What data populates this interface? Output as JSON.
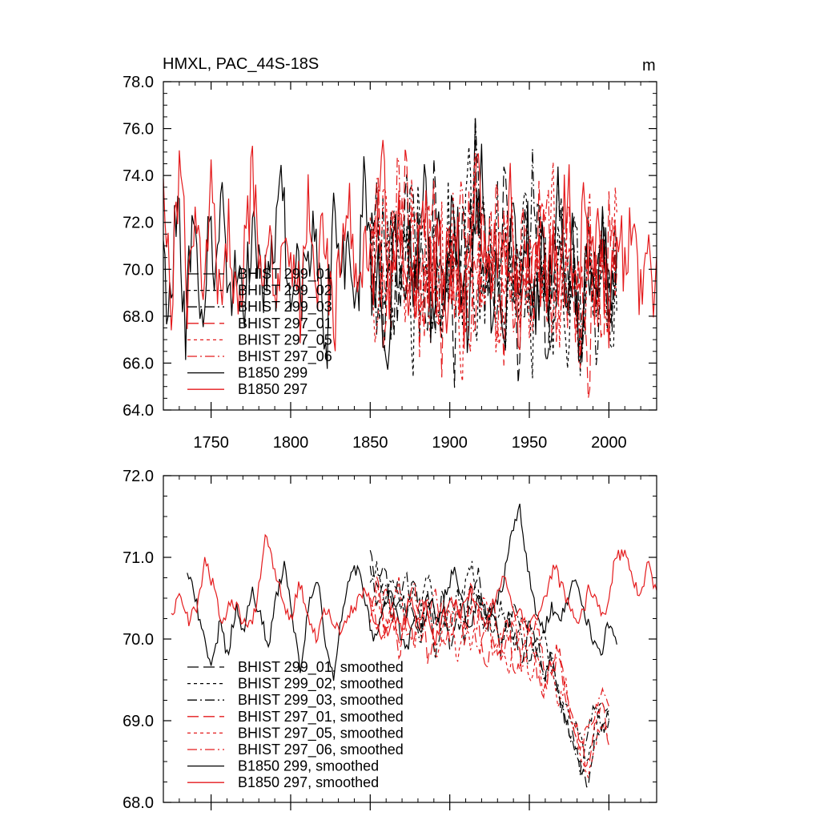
{
  "chart_data": [
    {
      "type": "line",
      "title": "HMXL, PAC_44S-18S",
      "units": "m",
      "xlim": [
        1720,
        2030
      ],
      "ylim": [
        64.0,
        78.0
      ],
      "xticks": [
        1750,
        1800,
        1850,
        1900,
        1950,
        2000
      ],
      "yticks": [
        "64.0",
        "66.0",
        "68.0",
        "70.0",
        "72.0",
        "74.0",
        "76.0",
        "78.0"
      ],
      "grid": false,
      "legend_position": "lower-left",
      "series": [
        {
          "name": "BHIST 299_01",
          "color": "#000000",
          "dash": "long-dash",
          "x_range": [
            1850,
            2005
          ],
          "mean": 70.0,
          "amp": 2.4,
          "y": [
            70.1,
            72.6,
            68.2,
            71.9,
            66.9,
            73.0,
            69.4,
            71.2,
            67.8,
            74.0,
            68.9,
            70.6,
            66.4,
            72.8,
            69.9,
            75.1,
            67.5,
            71.1,
            68.6,
            73.4,
            70.4,
            66.7,
            72.1,
            69.1,
            71.8,
            67.1,
            70.9,
            73.9,
            68.4,
            70.3,
            66.1,
            71.6,
            69.6,
            72.4,
            67.6,
            70.8
          ]
        },
        {
          "name": "BHIST 299_02",
          "color": "#000000",
          "dash": "short-dash",
          "x_range": [
            1850,
            2005
          ],
          "mean": 69.9,
          "amp": 2.3,
          "y": [
            69.6,
            71.4,
            67.9,
            72.9,
            68.8,
            70.7,
            66.2,
            73.6,
            69.3,
            71.0,
            67.4,
            72.2,
            70.5,
            68.1,
            74.6,
            66.8,
            71.7,
            69.0,
            72.7,
            67.3,
            70.2,
            68.7,
            73.1,
            66.5,
            71.3,
            69.8,
            68.0,
            72.5,
            67.0,
            70.6,
            65.9,
            71.9,
            68.5,
            70.0,
            66.3,
            69.4
          ]
        },
        {
          "name": "BHIST 299_03",
          "color": "#000000",
          "dash": "dash-dot",
          "x_range": [
            1850,
            2005
          ],
          "mean": 69.9,
          "amp": 2.3,
          "y": [
            70.6,
            68.3,
            72.3,
            67.2,
            71.5,
            69.7,
            73.8,
            68.0,
            70.9,
            66.6,
            72.0,
            69.2,
            71.4,
            67.7,
            70.3,
            75.4,
            68.9,
            71.2,
            66.9,
            72.6,
            69.5,
            70.8,
            67.4,
            73.5,
            68.6,
            70.1,
            66.0,
            71.8,
            69.0,
            72.2,
            67.5,
            70.4,
            65.6,
            71.0,
            68.2,
            69.7
          ]
        },
        {
          "name": "BHIST 297_01",
          "color": "#e41a1c",
          "dash": "long-dash",
          "x_range": [
            1850,
            2005
          ],
          "mean": 70.0,
          "amp": 2.4,
          "y": [
            68.4,
            73.2,
            66.1,
            71.8,
            69.6,
            74.7,
            67.8,
            70.9,
            68.2,
            72.5,
            66.5,
            71.2,
            70.3,
            68.6,
            73.0,
            67.1,
            71.6,
            69.4,
            72.9,
            66.8,
            70.5,
            68.9,
            71.9,
            67.3,
            73.3,
            69.1,
            70.7,
            66.2,
            72.1,
            68.0,
            71.0,
            65.2,
            70.2,
            67.6,
            72.8,
            69.5
          ]
        },
        {
          "name": "BHIST 297_05",
          "color": "#e41a1c",
          "dash": "short-dash",
          "x_range": [
            1850,
            2005
          ],
          "mean": 70.0,
          "amp": 2.3,
          "y": [
            71.2,
            67.3,
            74.3,
            69.0,
            72.0,
            66.9,
            73.4,
            68.5,
            70.6,
            67.2,
            71.7,
            69.3,
            72.6,
            66.4,
            70.0,
            73.7,
            68.1,
            71.4,
            67.0,
            70.8,
            72.3,
            68.8,
            69.9,
            66.6,
            71.5,
            68.3,
            73.6,
            67.7,
            70.4,
            69.1,
            66.0,
            71.3,
            68.7,
            70.1,
            66.7,
            73.1
          ]
        },
        {
          "name": "BHIST 297_06",
          "color": "#e41a1c",
          "dash": "dash-dot",
          "x_range": [
            1850,
            2005
          ],
          "mean": 70.0,
          "amp": 2.3,
          "y": [
            69.3,
            72.8,
            67.6,
            70.5,
            73.9,
            68.2,
            71.3,
            66.7,
            72.4,
            69.7,
            67.9,
            71.8,
            69.0,
            73.1,
            67.0,
            70.7,
            68.4,
            72.2,
            66.3,
            71.5,
            69.8,
            67.4,
            72.7,
            68.7,
            70.3,
            74.2,
            67.2,
            71.1,
            68.9,
            70.0,
            66.6,
            72.3,
            68.1,
            70.8,
            67.5,
            71.6
          ]
        },
        {
          "name": "B1850 299",
          "color": "#000000",
          "dash": "solid",
          "x_range": [
            1720,
            2005
          ],
          "mean": 70.0,
          "amp": 2.2,
          "y": [
            70.0,
            68.4,
            73.6,
            67.1,
            72.2,
            66.8,
            71.8,
            69.3,
            73.8,
            68.1,
            71.0,
            67.6,
            72.9,
            69.8,
            68.5,
            71.5,
            73.3,
            67.9,
            70.7,
            68.8,
            72.4,
            70.1,
            66.9,
            73.1,
            69.5,
            71.2,
            67.4,
            74.2,
            69.2,
            70.4,
            64.8,
            72.6,
            68.3,
            71.7,
            69.0,
            75.0,
            67.2,
            70.9,
            68.6,
            72.8,
            70.2,
            67.8,
            71.4,
            74.4,
            68.0,
            70.5,
            66.9,
            72.1,
            69.7,
            71.9,
            67.5,
            70.6,
            68.9,
            73.0,
            69.1,
            71.3,
            66.5,
            70.8,
            67.7,
            72.0,
            68.2,
            70.3
          ]
        },
        {
          "name": "B1850 297",
          "color": "#e41a1c",
          "dash": "solid",
          "x_range": [
            1720,
            2030
          ],
          "mean": 70.3,
          "amp": 2.2,
          "y": [
            72.5,
            69.0,
            74.9,
            68.6,
            71.6,
            70.1,
            73.5,
            67.9,
            72.3,
            68.8,
            70.7,
            73.8,
            69.2,
            71.4,
            67.6,
            72.8,
            70.4,
            68.3,
            73.3,
            69.6,
            71.9,
            66.9,
            70.9,
            72.6,
            68.5,
            71.1,
            69.9,
            76.2,
            68.1,
            72.2,
            70.5,
            67.7,
            73.7,
            69.4,
            71.3,
            68.7,
            72.9,
            67.3,
            70.6,
            74.0,
            68.9,
            71.8,
            69.1,
            73.4,
            67.5,
            70.2,
            72.1,
            68.4,
            71.0,
            69.8,
            74.2,
            68.0,
            72.4,
            69.5,
            71.5,
            67.8,
            72.0,
            70.3,
            71.8,
            69.3,
            70.7,
            68.9
          ]
        }
      ]
    },
    {
      "type": "line",
      "title": "",
      "xlim": [
        1720,
        2030
      ],
      "ylim": [
        68.0,
        72.0
      ],
      "yticks": [
        "68.0",
        "69.0",
        "70.0",
        "71.0",
        "72.0"
      ],
      "grid": false,
      "legend_position": "lower-left",
      "series": [
        {
          "name": "BHIST 299_01, smoothed",
          "color": "#000000",
          "dash": "long-dash",
          "x_range": [
            1850,
            2000
          ],
          "y": [
            71.1,
            70.6,
            70.9,
            70.4,
            70.7,
            70.3,
            70.8,
            70.2,
            70.5,
            70.1,
            70.6,
            69.9,
            70.3,
            70.0,
            70.5,
            70.8,
            70.2,
            70.4,
            69.8,
            70.3,
            70.0,
            69.7,
            70.2,
            69.9,
            69.5,
            69.8,
            69.3,
            69.0,
            68.8,
            68.5,
            68.2,
            68.7,
            68.9,
            69.1
          ]
        },
        {
          "name": "BHIST 299_02, smoothed",
          "color": "#000000",
          "dash": "short-dash",
          "x_range": [
            1850,
            2000
          ],
          "y": [
            70.7,
            70.9,
            70.4,
            70.8,
            70.5,
            70.2,
            70.6,
            70.4,
            70.8,
            70.3,
            70.1,
            70.5,
            70.2,
            70.6,
            70.9,
            70.5,
            70.3,
            70.1,
            70.4,
            70.2,
            69.9,
            70.3,
            70.0,
            69.8,
            70.1,
            69.6,
            69.4,
            69.2,
            69.0,
            68.8,
            68.5,
            68.9,
            69.3,
            69.0
          ]
        },
        {
          "name": "BHIST 299_03, smoothed",
          "color": "#000000",
          "dash": "dash-dot",
          "x_range": [
            1850,
            2000
          ],
          "y": [
            70.9,
            70.4,
            70.7,
            70.2,
            70.5,
            70.8,
            70.3,
            70.0,
            70.6,
            69.8,
            70.3,
            70.1,
            70.6,
            70.2,
            70.7,
            70.4,
            70.1,
            70.3,
            69.9,
            70.2,
            70.4,
            70.0,
            69.7,
            70.1,
            69.5,
            69.8,
            69.3,
            69.1,
            68.7,
            68.4,
            68.8,
            69.2,
            68.9,
            69.0
          ]
        },
        {
          "name": "BHIST 297_01, smoothed",
          "color": "#e41a1c",
          "dash": "long-dash",
          "x_range": [
            1850,
            2000
          ],
          "y": [
            70.4,
            70.8,
            70.1,
            70.5,
            69.8,
            70.3,
            70.0,
            70.6,
            69.7,
            70.2,
            70.5,
            69.9,
            70.4,
            70.1,
            70.7,
            70.2,
            69.6,
            70.0,
            69.8,
            70.3,
            69.5,
            69.8,
            70.1,
            69.6,
            69.3,
            69.7,
            69.9,
            69.4,
            69.1,
            68.8,
            68.4,
            68.9,
            69.3,
            68.7
          ]
        },
        {
          "name": "BHIST 297_05, smoothed",
          "color": "#e41a1c",
          "dash": "short-dash",
          "x_range": [
            1850,
            2000
          ],
          "y": [
            70.2,
            70.6,
            70.0,
            70.4,
            70.7,
            70.1,
            69.9,
            70.3,
            70.5,
            69.8,
            70.1,
            70.4,
            69.7,
            70.2,
            69.9,
            70.3,
            70.6,
            69.8,
            70.0,
            69.6,
            69.9,
            70.2,
            69.5,
            69.8,
            69.4,
            69.7,
            69.2,
            69.5,
            68.9,
            68.6,
            68.3,
            68.7,
            69.0,
            68.8
          ]
        },
        {
          "name": "BHIST 297_06, smoothed",
          "color": "#e41a1c",
          "dash": "dash-dot",
          "x_range": [
            1850,
            2000
          ],
          "y": [
            70.5,
            70.1,
            70.6,
            70.3,
            69.9,
            70.4,
            70.7,
            70.0,
            70.3,
            70.6,
            69.9,
            70.2,
            70.5,
            70.0,
            70.4,
            69.8,
            70.1,
            70.5,
            69.7,
            70.0,
            70.3,
            69.6,
            69.9,
            70.2,
            69.7,
            69.5,
            69.8,
            69.3,
            69.0,
            68.6,
            68.9,
            69.1,
            69.4,
            69.2
          ]
        },
        {
          "name": "B1850 299, smoothed",
          "color": "#000000",
          "dash": "solid",
          "x_range": [
            1735,
            2005
          ],
          "y": [
            70.8,
            70.5,
            70.0,
            69.6,
            70.2,
            69.8,
            70.4,
            70.1,
            70.6,
            70.3,
            69.9,
            70.5,
            70.9,
            70.2,
            69.6,
            70.4,
            70.8,
            70.0,
            69.5,
            70.3,
            70.7,
            70.9,
            70.4,
            70.0,
            70.3,
            70.6,
            70.2,
            69.8,
            70.3,
            70.1,
            70.5,
            70.2,
            70.6,
            70.9,
            70.4,
            70.1,
            70.6,
            70.3,
            70.4,
            70.7,
            71.3,
            71.6,
            70.9,
            70.3,
            70.1,
            70.4,
            70.2,
            70.5,
            70.8,
            70.3,
            70.0,
            69.8,
            70.2,
            70.0
          ]
        },
        {
          "name": "B1850 297, smoothed",
          "color": "#e41a1c",
          "dash": "solid",
          "x_range": [
            1725,
            2030
          ],
          "y": [
            70.3,
            70.5,
            70.2,
            70.4,
            71.0,
            70.6,
            70.2,
            70.5,
            70.3,
            70.1,
            70.4,
            71.3,
            70.9,
            70.5,
            70.2,
            70.7,
            70.3,
            70.0,
            70.4,
            70.2,
            70.1,
            70.3,
            70.5,
            70.6,
            70.2,
            70.0,
            70.3,
            70.1,
            70.5,
            70.2,
            70.4,
            70.0,
            70.3,
            70.5,
            70.3,
            70.6,
            70.4,
            70.2,
            70.5,
            70.8,
            70.4,
            70.3,
            70.1,
            70.3,
            70.5,
            70.9,
            70.6,
            70.4,
            70.2,
            70.6,
            70.4,
            70.3,
            70.9,
            71.1,
            70.8,
            70.5,
            70.9,
            70.6
          ]
        }
      ]
    }
  ]
}
